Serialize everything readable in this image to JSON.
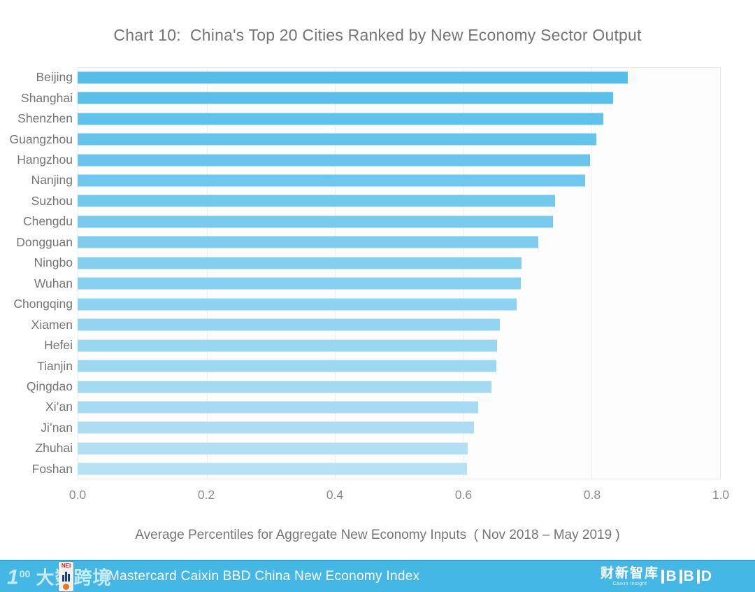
{
  "title": "Chart 10:  China's Top 20 Cities Ranked by New Economy Sector Output",
  "chart_data": {
    "type": "bar",
    "orientation": "horizontal",
    "title": "Chart 10:  China's Top 20 Cities Ranked by New Economy Sector Output",
    "categories": [
      "Beijing",
      "Shanghai",
      "Shenzhen",
      "Guangzhou",
      "Hangzhou",
      "Nanjing",
      "Suzhou",
      "Chengdu",
      "Dongguan",
      "Ningbo",
      "Wuhan",
      "Chongqing",
      "Xiamen",
      "Hefei",
      "Tianjin",
      "Qingdao",
      "Xi’an",
      "Ji’nan",
      "Zhuhai",
      "Foshan"
    ],
    "values": [
      0.855,
      0.833,
      0.817,
      0.806,
      0.797,
      0.789,
      0.742,
      0.739,
      0.716,
      0.69,
      0.689,
      0.683,
      0.656,
      0.652,
      0.651,
      0.643,
      0.623,
      0.616,
      0.606,
      0.605
    ],
    "xlabel": "Average Percentiles for Aggregate New Economy Inputs  ( Nov 2018 – May 2019 )",
    "xlim": [
      0.0,
      1.0
    ],
    "xticks": [
      "0.0",
      "0.2",
      "0.4",
      "0.6",
      "0.8",
      "1.0"
    ],
    "grid": "vertical, light gray, every 0.2",
    "legend": "none",
    "bar_color_start": "#54bee9",
    "bar_color_end": "#b7e1f5"
  },
  "colors": {
    "title_text": "#757575",
    "axis_text": "#8c8c8c",
    "gridline": "#efefef",
    "plot_border": "#e9e9e9",
    "footer_background": "#45b7e5",
    "footer_top_edge": "#2ca4d6"
  },
  "footer": {
    "title": "Mastercard Caixin BBD China New Economy Index",
    "watermark_digit": "1",
    "watermark_sup": "00",
    "watermark_text": "大数跨境",
    "nei_icon_text": "NEI",
    "caixin_logo": "财新智库",
    "caixin_sub": "Caixin Insight",
    "bbd_letters": [
      "B",
      "B",
      "D"
    ]
  }
}
